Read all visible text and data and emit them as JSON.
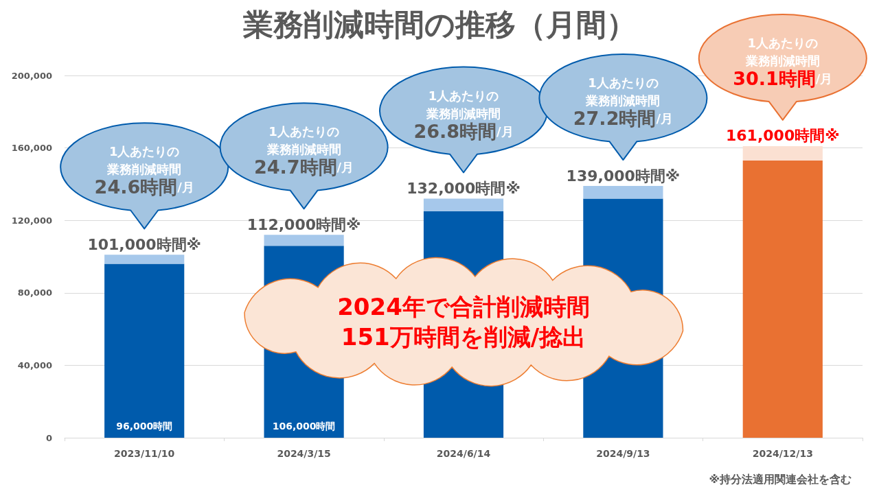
{
  "chart_data": {
    "type": "bar",
    "title": "業務削減時間の推移（月間）",
    "categories": [
      "2023/11/10",
      "2024/3/15",
      "2024/6/14",
      "2024/9/13",
      "2024/12/13"
    ],
    "stacked": true,
    "series": [
      {
        "values": [
          96000,
          106000,
          125000,
          132000,
          153000
        ],
        "colors": [
          "#005bac",
          "#005bac",
          "#005bac",
          "#005bac",
          "#e97132"
        ],
        "value_labels": [
          "96,000時間",
          "106,000時間",
          null,
          null,
          null
        ]
      },
      {
        "values": [
          5000,
          6000,
          7000,
          7000,
          8000
        ],
        "colors": [
          "#a6c8eb",
          "#a6c8eb",
          "#a6c8eb",
          "#a6c8eb",
          "#fbe0d2"
        ]
      }
    ],
    "totals": [
      "101,000時間※",
      "112,000時間※",
      "132,000時間※",
      "139,000時間※",
      "161,000時間※"
    ],
    "ylim": [
      0,
      200000
    ],
    "yticks": [
      0,
      {
        "value": 40000,
        "label": "40,000"
      },
      {
        "value": 80000,
        "label": "80,000"
      },
      {
        "value": 120000,
        "label": "120,000"
      },
      {
        "value": 160000,
        "label": "160,000"
      },
      {
        "value": 200000,
        "label": "200,000"
      }
    ],
    "grid": "y",
    "annotations": [
      "1人あたりの業務削減時間24.6時間/月",
      "1人あたりの業務削減時間24.7時間/月",
      "1人あたりの業務削減時間26.8時間/月",
      "1人あたりの業務削減時間27.2時間/月",
      "1人あたりの業務削減時間30.1時間/月",
      "2024年で合計削減時間\n151万時間を削減/捻出",
      "※持分法適用関連会社を含む"
    ]
  }
}
